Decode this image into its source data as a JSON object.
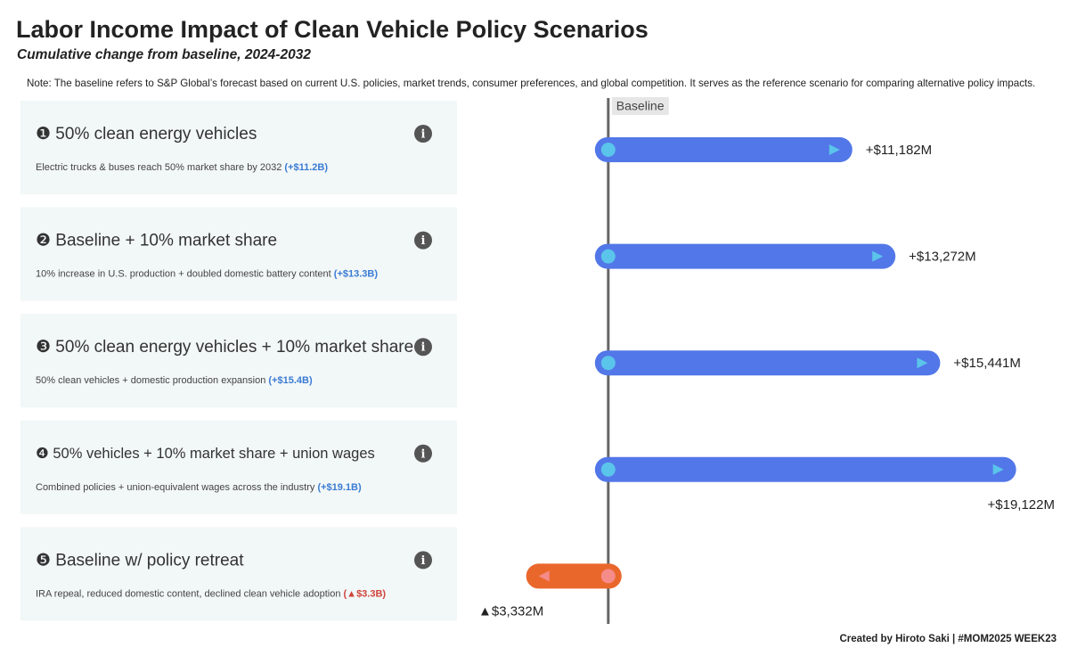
{
  "title": "Labor Income Impact of Clean Vehicle Policy Scenarios",
  "subtitle": "Cumulative change from baseline, 2024-2032",
  "note": "Note: The baseline refers to S&P Global’s forecast based on current U.S. policies, market trends, consumer preferences, and global competition. It serves as the reference scenario for comparing alternative policy impacts.",
  "footer": "Created by Hiroto Saki | #MOM2025 WEEK23",
  "cards": [
    {
      "description": "Electric trucks & buses reach 50% market share by 2032",
      "highlight": "(+$11.2B)",
      "highlight_color": "#3a7bd5"
    },
    {
      "description": "10% increase in U.S. production + doubled domestic battery content",
      "highlight": "(+$13.3B)",
      "highlight_color": "#3a7bd5"
    },
    {
      "description": "50% clean vehicles + domestic production expansion",
      "highlight": "(+$15.4B)",
      "highlight_color": "#3a7bd5"
    },
    {
      "description": "Combined policies + union-equivalent wages across the industry",
      "highlight": "(+$19.1B)",
      "highlight_color": "#3a7bd5"
    },
    {
      "description": "IRA repeal, reduced domestic content, declined clean vehicle adoption",
      "highlight": "(▲$3.3B)",
      "highlight_color": "#d0443c"
    }
  ],
  "chart_data": {
    "type": "bar",
    "orientation": "horizontal",
    "baseline_label": "Baseline",
    "categories": [
      "❶ 50% clean energy vehicles",
      "❷ Baseline + 10% market share",
      "❸ 50% clean energy vehicles + 10% market share",
      "❹ 50% vehicles + 10% market share + union wages",
      "❺ Baseline w/ policy retreat"
    ],
    "values": [
      11182,
      13272,
      15441,
      19122,
      -3332
    ],
    "value_labels": [
      "+$11,182M",
      "+$13,272M",
      "+$15,441M",
      "+$19,122M",
      "▲$3,332M"
    ],
    "colors": [
      "#5277e8",
      "#5277e8",
      "#5277e8",
      "#5277e8",
      "#ea672c"
    ],
    "xlim": [
      -5000,
      20000
    ]
  }
}
